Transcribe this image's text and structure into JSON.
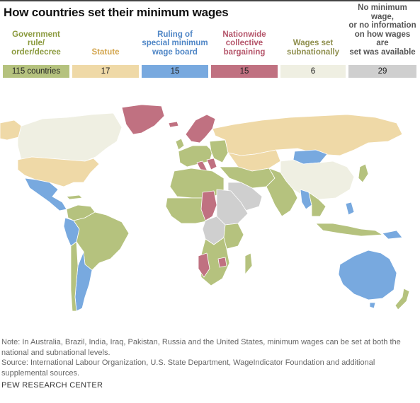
{
  "title": "How countries set their minimum wages",
  "legend": [
    {
      "label": "Government rule/\norder/decree",
      "count": "115 countries",
      "color": "#b5c27e",
      "label_color": "#8b9a3e"
    },
    {
      "label": "Statute",
      "count": "17",
      "color": "#efd9a7",
      "label_color": "#d3a54d"
    },
    {
      "label": "Ruling of\nspecial minimum\nwage board",
      "count": "15",
      "color": "#78a9df",
      "label_color": "#4f86c6"
    },
    {
      "label": "Nationwide\ncollective\nbargaining",
      "count": "15",
      "color": "#c07181",
      "label_color": "#b5566b"
    },
    {
      "label": "Wages set\nsubnationally",
      "count": "6",
      "color": "#efefe2",
      "label_color": "#8f8f4e"
    },
    {
      "label": "No minimum wage,\nor no information\non how wages are\nset was available",
      "count": "29",
      "color": "#cfcfcf",
      "label_color": "#555555"
    }
  ],
  "note": "Note: In Australia, Brazil, India, Iraq, Pakistan, Russia and the United States, minimum wages can be set at both the national and subnational levels.",
  "source": "Source: International Labour Organization, U.S. State Department, WageIndicator Foundation and additional supplemental sources.",
  "credit": "PEW RESEARCH CENTER"
}
